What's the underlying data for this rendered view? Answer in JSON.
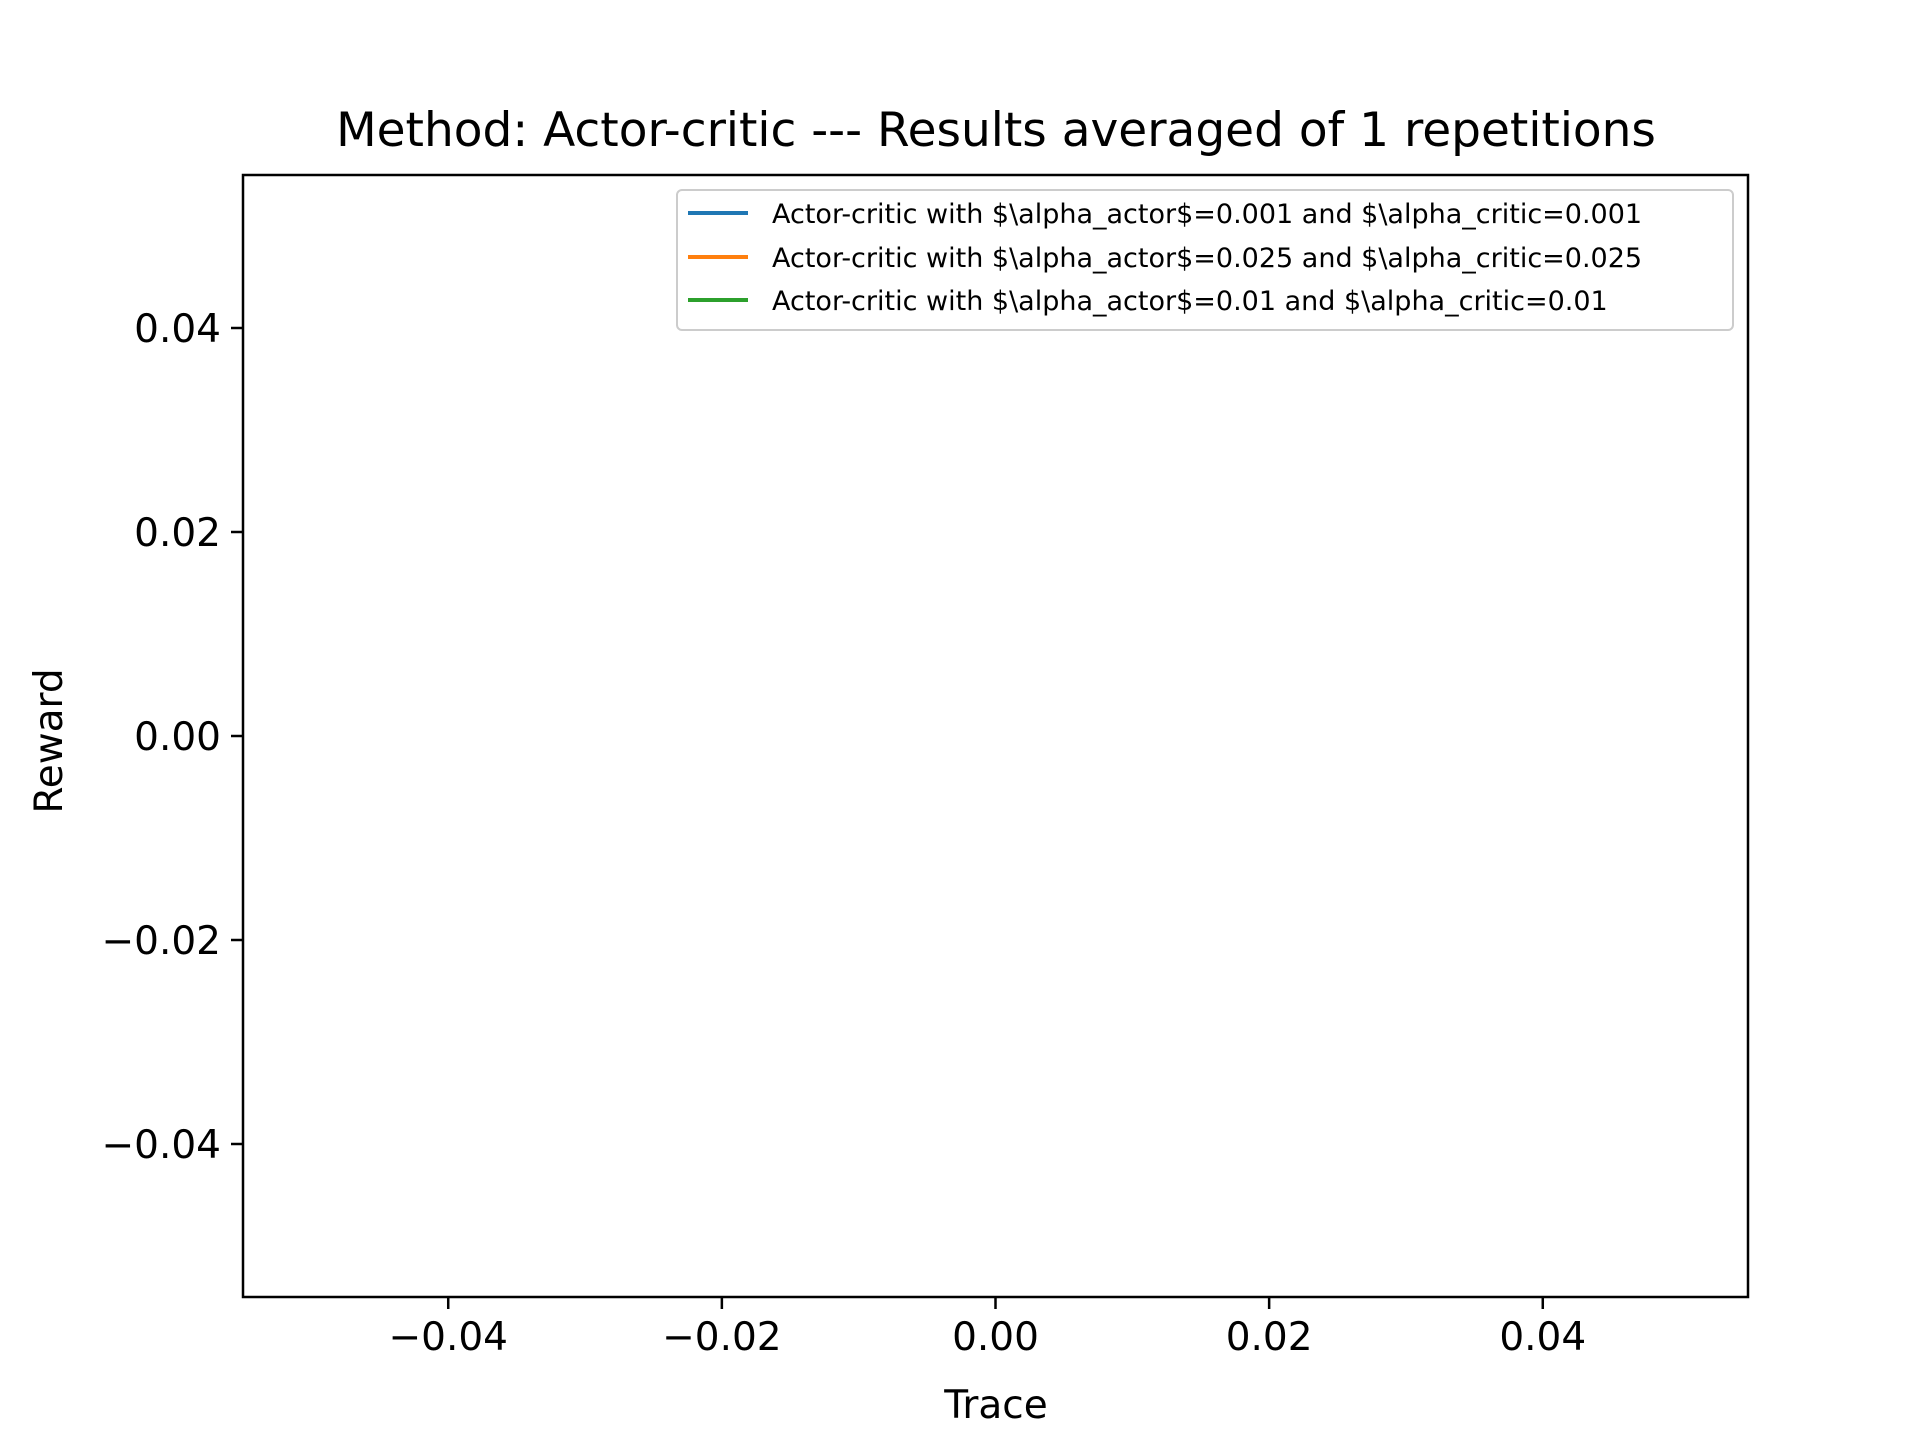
{
  "chart_data": {
    "type": "line",
    "title": "Method: Actor-critic --- Results averaged of 1 repetitions",
    "xlabel": "Trace",
    "ylabel": "Reward",
    "xlim": [
      -0.055,
      0.055
    ],
    "ylim": [
      -0.055,
      0.055
    ],
    "xticks": [
      -0.04,
      -0.02,
      0.0,
      0.02,
      0.04
    ],
    "xtick_labels": [
      "−0.04",
      "−0.02",
      "0.00",
      "0.02",
      "0.04"
    ],
    "yticks": [
      -0.04,
      -0.02,
      0.0,
      0.02,
      0.04
    ],
    "ytick_labels": [
      "−0.04",
      "−0.02",
      "0.00",
      "0.02",
      "0.04"
    ],
    "grid": false,
    "legend_position": "top-right",
    "series": [
      {
        "name": "Actor-critic with $\\alpha_actor$=0.001 and $\\alpha_critic=0.001",
        "color": "#1f77b4",
        "x": [],
        "y": []
      },
      {
        "name": "Actor-critic with $\\alpha_actor$=0.025 and $\\alpha_critic=0.025",
        "color": "#ff7f0e",
        "x": [],
        "y": []
      },
      {
        "name": "Actor-critic with $\\alpha_actor$=0.01 and $\\alpha_critic=0.01",
        "color": "#2ca02c",
        "x": [],
        "y": []
      }
    ]
  }
}
